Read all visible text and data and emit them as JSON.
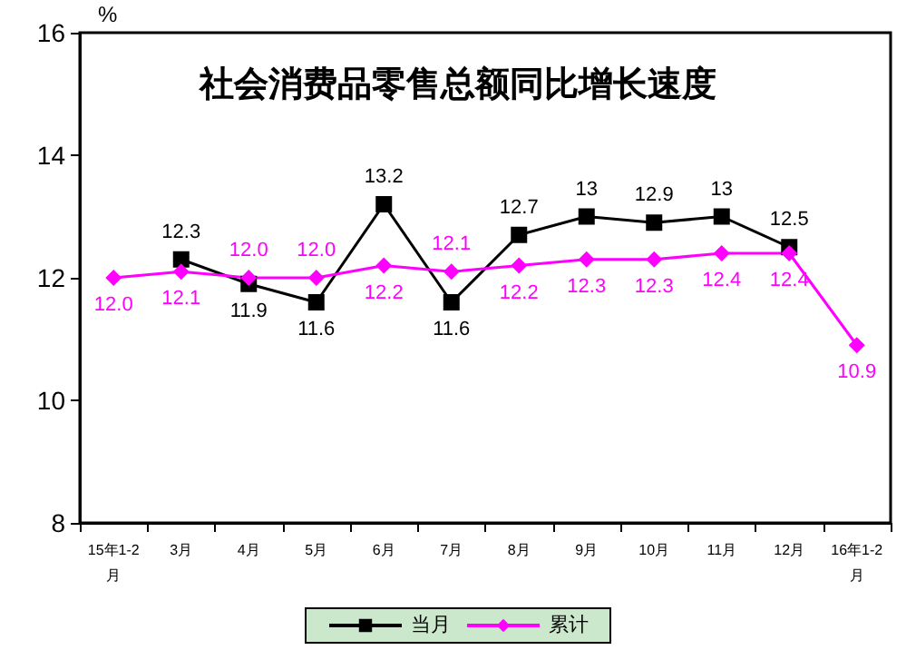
{
  "chart_data": {
    "type": "line",
    "title": "社会消费品零售总额同比增长速度",
    "ylabel": "%",
    "categories": [
      "15年1-2月",
      "3月",
      "4月",
      "5月",
      "6月",
      "7月",
      "8月",
      "9月",
      "10月",
      "11月",
      "12月",
      "16年1-2月"
    ],
    "series": [
      {
        "name": "当月",
        "color": "#000000",
        "marker": "square",
        "values": [
          null,
          12.3,
          11.9,
          11.6,
          13.2,
          11.6,
          12.7,
          13,
          12.9,
          13,
          12.5,
          null
        ],
        "value_labels": [
          null,
          "12.3",
          "11.9",
          "11.6",
          "13.2",
          "11.6",
          "12.7",
          "13",
          "12.9",
          "13",
          "12.5",
          null
        ]
      },
      {
        "name": "累计",
        "color": "#ff00ff",
        "marker": "diamond",
        "values": [
          12.0,
          12.1,
          12.0,
          12.0,
          12.2,
          12.1,
          12.2,
          12.3,
          12.3,
          12.4,
          12.4,
          10.9
        ],
        "value_labels": [
          "12.0",
          "12.1",
          "12.0",
          "12.0",
          "12.2",
          "12.1",
          "12.2",
          "12.3",
          "12.3",
          "12.4",
          "12.4",
          "10.9"
        ]
      }
    ],
    "ylim": [
      8,
      16
    ],
    "yticks": [
      8,
      10,
      12,
      14,
      16
    ],
    "grid": false,
    "legend": "bottom",
    "line_style": "solid"
  }
}
